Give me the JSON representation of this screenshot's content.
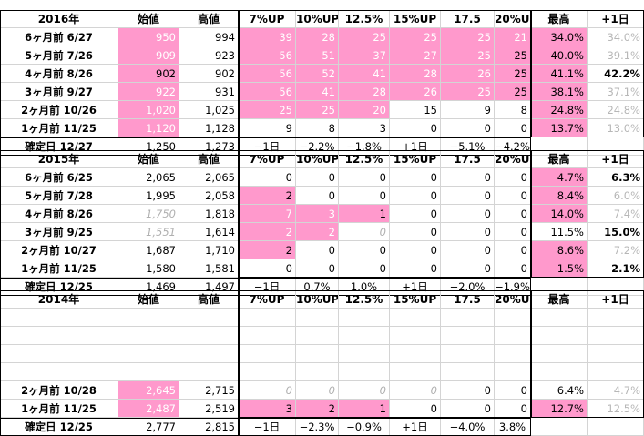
{
  "colors": {
    "pink": "#ff99cc",
    "grid": "#d4d4d4"
  },
  "tables": [
    {
      "title": "2016年",
      "headers": [
        "始値",
        "高値",
        "7%UP",
        "10%UP",
        "12.5%",
        "15%UP",
        "17.5",
        "20%UP",
        "最高",
        "+1日"
      ],
      "rows": [
        {
          "label": "6ヶ月前 6/27",
          "cells": [
            {
              "v": "950",
              "s": "pw"
            },
            {
              "v": "994",
              "s": "n"
            },
            {
              "v": "39",
              "s": "pw"
            },
            {
              "v": "28",
              "s": "pw"
            },
            {
              "v": "25",
              "s": "pw"
            },
            {
              "v": "25",
              "s": "pw"
            },
            {
              "v": "25",
              "s": "pw"
            },
            {
              "v": "21",
              "s": "pw"
            },
            {
              "v": "34.0%",
              "s": "p"
            },
            {
              "v": "34.0%",
              "s": "g"
            }
          ]
        },
        {
          "label": "5ヶ月前 7/26",
          "cells": [
            {
              "v": "909",
              "s": "pw"
            },
            {
              "v": "923",
              "s": "n"
            },
            {
              "v": "56",
              "s": "pw"
            },
            {
              "v": "51",
              "s": "pw"
            },
            {
              "v": "37",
              "s": "pw"
            },
            {
              "v": "27",
              "s": "pw"
            },
            {
              "v": "25",
              "s": "pw"
            },
            {
              "v": "25",
              "s": "p"
            },
            {
              "v": "40.0%",
              "s": "p"
            },
            {
              "v": "39.1%",
              "s": "g"
            }
          ]
        },
        {
          "label": "4ヶ月前 8/26",
          "cells": [
            {
              "v": "902",
              "s": "p"
            },
            {
              "v": "902",
              "s": "n"
            },
            {
              "v": "56",
              "s": "pw"
            },
            {
              "v": "52",
              "s": "pw"
            },
            {
              "v": "41",
              "s": "pw"
            },
            {
              "v": "28",
              "s": "pw"
            },
            {
              "v": "26",
              "s": "pw"
            },
            {
              "v": "25",
              "s": "p"
            },
            {
              "v": "41.1%",
              "s": "p"
            },
            {
              "v": "42.2%",
              "s": "b"
            }
          ]
        },
        {
          "label": "3ヶ月前 9/27",
          "cells": [
            {
              "v": "922",
              "s": "pw"
            },
            {
              "v": "931",
              "s": "n"
            },
            {
              "v": "56",
              "s": "pw"
            },
            {
              "v": "41",
              "s": "pw"
            },
            {
              "v": "28",
              "s": "pw"
            },
            {
              "v": "26",
              "s": "pw"
            },
            {
              "v": "25",
              "s": "pw"
            },
            {
              "v": "25",
              "s": "p"
            },
            {
              "v": "38.1%",
              "s": "p"
            },
            {
              "v": "37.1%",
              "s": "g"
            }
          ]
        },
        {
          "label": "2ヶ月前 10/26",
          "cells": [
            {
              "v": "1,020",
              "s": "pw"
            },
            {
              "v": "1,025",
              "s": "n"
            },
            {
              "v": "25",
              "s": "pw"
            },
            {
              "v": "25",
              "s": "pw"
            },
            {
              "v": "20",
              "s": "pw"
            },
            {
              "v": "15",
              "s": "n"
            },
            {
              "v": "9",
              "s": "n"
            },
            {
              "v": "8",
              "s": "n"
            },
            {
              "v": "24.8%",
              "s": "p"
            },
            {
              "v": "24.8%",
              "s": "g"
            }
          ]
        },
        {
          "label": "1ヶ月前 11/25",
          "cells": [
            {
              "v": "1,120",
              "s": "pw"
            },
            {
              "v": "1,128",
              "s": "n"
            },
            {
              "v": "9",
              "s": "n"
            },
            {
              "v": "8",
              "s": "n"
            },
            {
              "v": "3",
              "s": "n"
            },
            {
              "v": "0",
              "s": "n"
            },
            {
              "v": "0",
              "s": "n"
            },
            {
              "v": "0",
              "s": "n"
            },
            {
              "v": "13.7%",
              "s": "p"
            },
            {
              "v": "13.0%",
              "s": "g"
            }
          ]
        }
      ],
      "final": {
        "label": "確定日 12/27",
        "cells": [
          "1,250",
          "1,273",
          "−1日",
          "−2.2%",
          "−1.8%",
          "+1日",
          "−5.1%",
          "−4.2%",
          "",
          ""
        ]
      }
    },
    {
      "title": "2015年",
      "headers": [
        "始値",
        "高値",
        "7%UP",
        "10%UP",
        "12.5%",
        "15%UP",
        "17.5",
        "20%UP",
        "最高",
        "+1日"
      ],
      "rows": [
        {
          "label": "6ヶ月前 6/25",
          "cells": [
            {
              "v": "2,065",
              "s": "n"
            },
            {
              "v": "2,065",
              "s": "n"
            },
            {
              "v": "0",
              "s": "n"
            },
            {
              "v": "0",
              "s": "n"
            },
            {
              "v": "0",
              "s": "n"
            },
            {
              "v": "0",
              "s": "n"
            },
            {
              "v": "0",
              "s": "n"
            },
            {
              "v": "0",
              "s": "n"
            },
            {
              "v": "4.7%",
              "s": "p"
            },
            {
              "v": "6.3%",
              "s": "b"
            }
          ]
        },
        {
          "label": "5ヶ月前 7/28",
          "cells": [
            {
              "v": "1,995",
              "s": "n"
            },
            {
              "v": "2,058",
              "s": "n"
            },
            {
              "v": "2",
              "s": "p"
            },
            {
              "v": "0",
              "s": "n"
            },
            {
              "v": "0",
              "s": "n"
            },
            {
              "v": "0",
              "s": "n"
            },
            {
              "v": "0",
              "s": "n"
            },
            {
              "v": "0",
              "s": "n"
            },
            {
              "v": "8.4%",
              "s": "p"
            },
            {
              "v": "6.0%",
              "s": "g"
            }
          ]
        },
        {
          "label": "4ヶ月前 8/26",
          "cells": [
            {
              "v": "1,750",
              "s": "i"
            },
            {
              "v": "1,818",
              "s": "n"
            },
            {
              "v": "7",
              "s": "pw"
            },
            {
              "v": "3",
              "s": "pw"
            },
            {
              "v": "1",
              "s": "p"
            },
            {
              "v": "0",
              "s": "n"
            },
            {
              "v": "0",
              "s": "n"
            },
            {
              "v": "0",
              "s": "n"
            },
            {
              "v": "14.0%",
              "s": "p"
            },
            {
              "v": "7.4%",
              "s": "g"
            }
          ]
        },
        {
          "label": "3ヶ月前 9/25",
          "cells": [
            {
              "v": "1,551",
              "s": "i"
            },
            {
              "v": "1,614",
              "s": "n"
            },
            {
              "v": "2",
              "s": "pw"
            },
            {
              "v": "2",
              "s": "pw"
            },
            {
              "v": "0",
              "s": "i"
            },
            {
              "v": "0",
              "s": "n"
            },
            {
              "v": "0",
              "s": "n"
            },
            {
              "v": "0",
              "s": "n"
            },
            {
              "v": "11.5%",
              "s": "n"
            },
            {
              "v": "15.0%",
              "s": "b"
            }
          ]
        },
        {
          "label": "2ヶ月前 10/27",
          "cells": [
            {
              "v": "1,687",
              "s": "n"
            },
            {
              "v": "1,710",
              "s": "n"
            },
            {
              "v": "2",
              "s": "p"
            },
            {
              "v": "0",
              "s": "n"
            },
            {
              "v": "0",
              "s": "n"
            },
            {
              "v": "0",
              "s": "n"
            },
            {
              "v": "0",
              "s": "n"
            },
            {
              "v": "0",
              "s": "n"
            },
            {
              "v": "8.6%",
              "s": "p"
            },
            {
              "v": "7.2%",
              "s": "g"
            }
          ]
        },
        {
          "label": "1ヶ月前 11/25",
          "cells": [
            {
              "v": "1,580",
              "s": "n"
            },
            {
              "v": "1,581",
              "s": "n"
            },
            {
              "v": "0",
              "s": "n"
            },
            {
              "v": "0",
              "s": "n"
            },
            {
              "v": "0",
              "s": "n"
            },
            {
              "v": "0",
              "s": "n"
            },
            {
              "v": "0",
              "s": "n"
            },
            {
              "v": "0",
              "s": "n"
            },
            {
              "v": "1.5%",
              "s": "p"
            },
            {
              "v": "2.1%",
              "s": "b"
            }
          ]
        }
      ],
      "final": {
        "label": "確定日 12/25",
        "cells": [
          "1,469",
          "1,497",
          "−1日",
          "0.7%",
          "1.0%",
          "+1日",
          "−2.0%",
          "−1.9%",
          "",
          ""
        ]
      }
    },
    {
      "title": "2014年",
      "headers": [
        "始値",
        "高値",
        "7%UP",
        "10%UP",
        "12.5%",
        "15%UP",
        "17.5",
        "20%UP",
        "最高",
        "+1日"
      ],
      "rows": [
        {
          "label": "",
          "cells": [
            {
              "v": "",
              "s": "n"
            },
            {
              "v": "",
              "s": "n"
            },
            {
              "v": "",
              "s": "n"
            },
            {
              "v": "",
              "s": "n"
            },
            {
              "v": "",
              "s": "n"
            },
            {
              "v": "",
              "s": "n"
            },
            {
              "v": "",
              "s": "n"
            },
            {
              "v": "",
              "s": "n"
            },
            {
              "v": "",
              "s": "n"
            },
            {
              "v": "",
              "s": "n"
            }
          ]
        },
        {
          "label": "",
          "cells": [
            {
              "v": "",
              "s": "n"
            },
            {
              "v": "",
              "s": "n"
            },
            {
              "v": "",
              "s": "n"
            },
            {
              "v": "",
              "s": "n"
            },
            {
              "v": "",
              "s": "n"
            },
            {
              "v": "",
              "s": "n"
            },
            {
              "v": "",
              "s": "n"
            },
            {
              "v": "",
              "s": "n"
            },
            {
              "v": "",
              "s": "n"
            },
            {
              "v": "",
              "s": "n"
            }
          ]
        },
        {
          "label": "",
          "cells": [
            {
              "v": "",
              "s": "n"
            },
            {
              "v": "",
              "s": "n"
            },
            {
              "v": "",
              "s": "n"
            },
            {
              "v": "",
              "s": "n"
            },
            {
              "v": "",
              "s": "n"
            },
            {
              "v": "",
              "s": "n"
            },
            {
              "v": "",
              "s": "n"
            },
            {
              "v": "",
              "s": "n"
            },
            {
              "v": "",
              "s": "n"
            },
            {
              "v": "",
              "s": "n"
            }
          ]
        },
        {
          "label": "",
          "cells": [
            {
              "v": "",
              "s": "n"
            },
            {
              "v": "",
              "s": "n"
            },
            {
              "v": "",
              "s": "n"
            },
            {
              "v": "",
              "s": "n"
            },
            {
              "v": "",
              "s": "n"
            },
            {
              "v": "",
              "s": "n"
            },
            {
              "v": "",
              "s": "n"
            },
            {
              "v": "",
              "s": "n"
            },
            {
              "v": "",
              "s": "n"
            },
            {
              "v": "",
              "s": "n"
            }
          ]
        },
        {
          "label": "2ヶ月前 10/28",
          "cells": [
            {
              "v": "2,645",
              "s": "pw"
            },
            {
              "v": "2,715",
              "s": "n"
            },
            {
              "v": "0",
              "s": "i"
            },
            {
              "v": "0",
              "s": "i"
            },
            {
              "v": "0",
              "s": "i"
            },
            {
              "v": "0",
              "s": "i"
            },
            {
              "v": "0",
              "s": "n"
            },
            {
              "v": "0",
              "s": "n"
            },
            {
              "v": "6.4%",
              "s": "n"
            },
            {
              "v": "4.7%",
              "s": "g"
            }
          ]
        },
        {
          "label": "1ヶ月前 11/25",
          "cells": [
            {
              "v": "2,487",
              "s": "pw"
            },
            {
              "v": "2,519",
              "s": "n"
            },
            {
              "v": "3",
              "s": "p"
            },
            {
              "v": "2",
              "s": "p"
            },
            {
              "v": "1",
              "s": "p"
            },
            {
              "v": "0",
              "s": "n"
            },
            {
              "v": "0",
              "s": "n"
            },
            {
              "v": "0",
              "s": "n"
            },
            {
              "v": "12.7%",
              "s": "p"
            },
            {
              "v": "12.5%",
              "s": "g"
            }
          ]
        }
      ],
      "final": {
        "label": "確定日 12/25",
        "cells": [
          "2,777",
          "2,815",
          "−1日",
          "−2.3%",
          "−0.9%",
          "+1日",
          "−4.0%",
          "3.8%",
          "",
          ""
        ]
      }
    }
  ]
}
